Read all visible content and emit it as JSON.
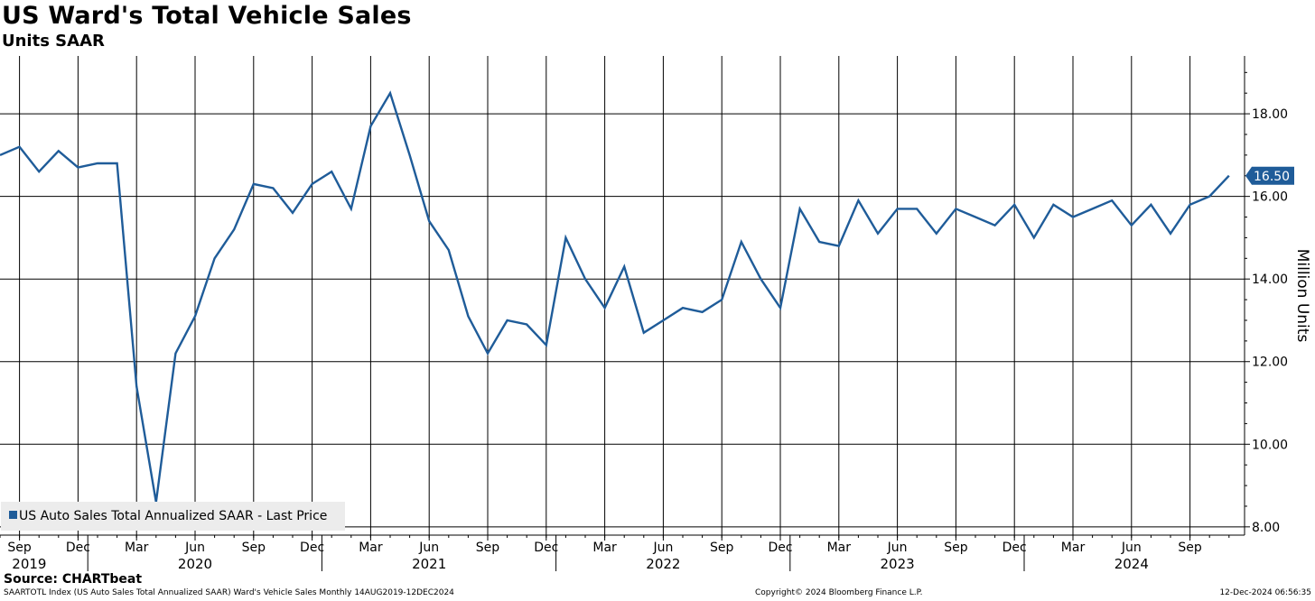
{
  "chart_data": {
    "type": "line",
    "title": "US Ward's Total Vehicle Sales",
    "subtitle": "Units SAAR",
    "ylabel": "Million Units",
    "xlabel": "",
    "ylim": [
      7.8,
      19.4
    ],
    "yticks": [
      8.0,
      10.0,
      12.0,
      14.0,
      16.0,
      18.0
    ],
    "ytick_labels": [
      "8.00",
      "10.00",
      "12.00",
      "14.00",
      "16.00",
      "18.00"
    ],
    "grid": true,
    "legend_position": "bottom-left",
    "series": [
      {
        "name": "US Auto Sales Total Annualized SAAR - Last Price",
        "color": "#1f5c99",
        "start": "2019-08",
        "values": [
          17.0,
          17.2,
          16.6,
          17.1,
          16.7,
          16.8,
          16.8,
          11.4,
          8.6,
          12.2,
          13.1,
          14.5,
          15.2,
          16.3,
          16.2,
          15.6,
          16.3,
          16.6,
          15.7,
          17.7,
          18.5,
          17.0,
          15.4,
          14.7,
          13.1,
          12.2,
          13.0,
          12.9,
          12.4,
          15.0,
          14.0,
          13.3,
          14.3,
          12.7,
          13.0,
          13.3,
          13.2,
          13.5,
          14.9,
          14.0,
          13.3,
          15.7,
          14.9,
          14.8,
          15.9,
          15.1,
          15.7,
          15.7,
          15.1,
          15.7,
          15.5,
          15.3,
          15.8,
          15.0,
          15.8,
          15.5,
          15.7,
          15.9,
          15.3,
          15.8,
          15.1,
          15.8,
          16.0,
          16.5
        ]
      }
    ],
    "last_value_label": "16.50",
    "x_month_ticks": [
      "Sep",
      "Dec",
      "Mar",
      "Jun",
      "Sep",
      "Dec",
      "Mar",
      "Jun",
      "Sep",
      "Dec",
      "Mar",
      "Jun",
      "Sep",
      "Dec",
      "Mar",
      "Jun",
      "Sep",
      "Dec",
      "Mar",
      "Jun",
      "Sep"
    ],
    "x_month_tick_index": [
      1,
      4,
      7,
      10,
      13,
      16,
      19,
      22,
      25,
      28,
      31,
      34,
      37,
      40,
      43,
      46,
      49,
      52,
      55,
      58,
      61
    ],
    "x_year_labels": [
      "2019",
      "2020",
      "2021",
      "2022",
      "2023",
      "2024"
    ],
    "x_year_label_index": [
      1.5,
      10,
      22,
      34,
      46,
      58
    ],
    "x_year_boundary_index": [
      4.5,
      16.5,
      28.5,
      40.5,
      52.5
    ]
  },
  "legend": {
    "label": "US Auto Sales Total Annualized SAAR - Last Price"
  },
  "footer": {
    "source": "Source: CHARTbeat",
    "description": "SAARTOTL Index (US Auto Sales Total Annualized SAAR) Ward's Vehicle Sales  Monthly 14AUG2019-12DEC2024",
    "copyright": "Copyright© 2024 Bloomberg Finance L.P.",
    "timestamp": "12-Dec-2024 06:56:35"
  }
}
